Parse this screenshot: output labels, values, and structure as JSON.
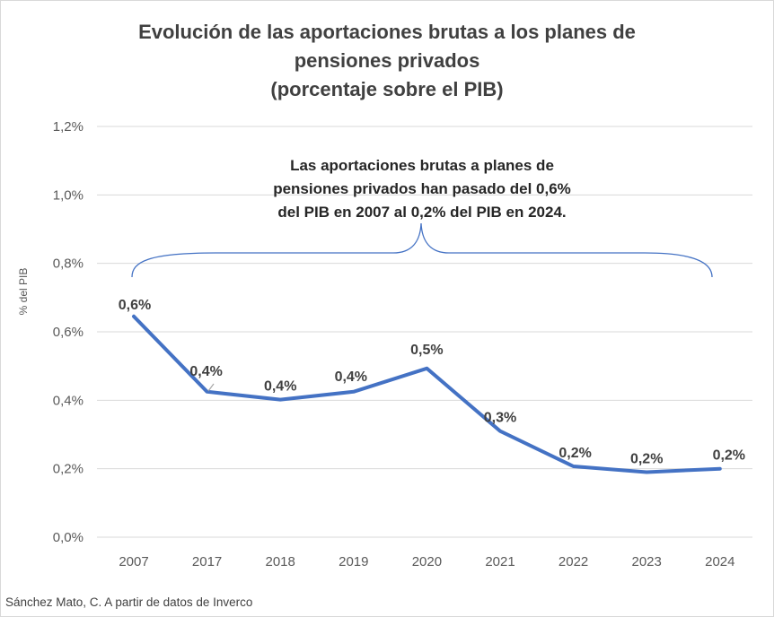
{
  "chart_data": {
    "type": "line",
    "title_lines": [
      "Evolución de las aportaciones brutas a los planes de",
      "pensiones privados",
      "(porcentaje sobre el PIB)"
    ],
    "ylabel": "% del PIB",
    "xlabel": "",
    "ylim": [
      0,
      1.2
    ],
    "yticks": [
      0,
      0.2,
      0.4,
      0.6,
      0.8,
      1.0,
      1.2
    ],
    "ytick_labels": [
      "0,0%",
      "0,2%",
      "0,4%",
      "0,6%",
      "0,8%",
      "1,0%",
      "1,2%"
    ],
    "categories": [
      "2007",
      "2017",
      "2018",
      "2019",
      "2020",
      "2021",
      "2022",
      "2023",
      "2024"
    ],
    "series": [
      {
        "values": [
          0.645,
          0.425,
          0.402,
          0.425,
          0.493,
          0.31,
          0.207,
          0.19,
          0.2
        ],
        "data_labels": [
          "0,6%",
          "0,4%",
          "0,4%",
          "0,4%",
          "0,5%",
          "0,3%",
          "0,2%",
          "0,2%",
          "0,2%"
        ],
        "color": "#4472c4"
      }
    ],
    "grid": true,
    "legend": "none",
    "annotation_lines": [
      "Las aportaciones brutas a planes de",
      "pensiones privados han pasado del 0,6%",
      "del PIB en 2007 al 0,2% del PIB en 2024."
    ],
    "source": "Sánchez Mato, C.  A partir de datos de Inverco"
  },
  "colors": {
    "line": "#4472c4",
    "brace": "#4472c4",
    "grid": "#d9d9d9"
  }
}
